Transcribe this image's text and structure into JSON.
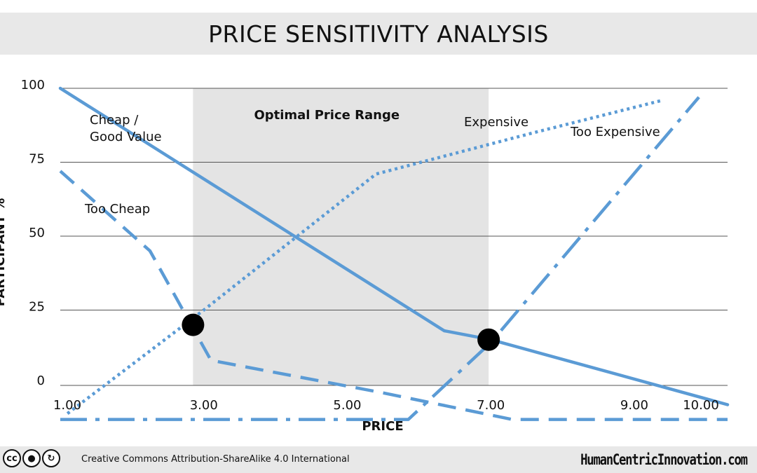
{
  "title": "PRICE SENSITIVITY ANALYSIS",
  "chart_data": {
    "type": "line",
    "title": "PRICE SENSITIVITY ANALYSIS",
    "xlabel": "PRICE",
    "ylabel": "PARTICIPANT %",
    "x_ticks": [
      "1.00",
      "3.00",
      "5.00",
      "7.00",
      "9.00",
      "10.00"
    ],
    "y_ticks": [
      "100",
      "75",
      "50",
      "25",
      "0"
    ],
    "grid": true,
    "optimal_range": {
      "label": "Optimal Price Range",
      "x_start": 2.85,
      "x_end": 6.97
    },
    "series": [
      {
        "name": "Cheap /\nGood Value",
        "style": "solid",
        "x": [
          1.0,
          6.35,
          7.0,
          10.3
        ],
        "y": [
          100,
          18,
          15,
          -7
        ]
      },
      {
        "name": "Too Cheap",
        "style": "dashed",
        "x": [
          1.0,
          2.25,
          3.1,
          5.5,
          7.3,
          10.3
        ],
        "y": [
          72,
          45,
          8,
          -3,
          -12,
          -12
        ]
      },
      {
        "name": "Expensive",
        "style": "dotted",
        "x": [
          1.1,
          3.0,
          5.4,
          7.6,
          9.4
        ],
        "y": [
          -10,
          25,
          71,
          85,
          96
        ]
      },
      {
        "name": "Too Expensive",
        "style": "dashdot",
        "x": [
          1.0,
          5.85,
          7.0,
          9.9
        ],
        "y": [
          -12,
          -12,
          14,
          97
        ]
      }
    ],
    "intersections": [
      {
        "x": 2.85,
        "y": 20
      },
      {
        "x": 6.97,
        "y": 15
      }
    ]
  },
  "footer": {
    "license": "Creative Commons  Attribution-ShareAlike  4.0 International",
    "cc_icons": [
      "cc",
      "by",
      "sa"
    ],
    "brand": "HumanCentricInnovation.com"
  }
}
